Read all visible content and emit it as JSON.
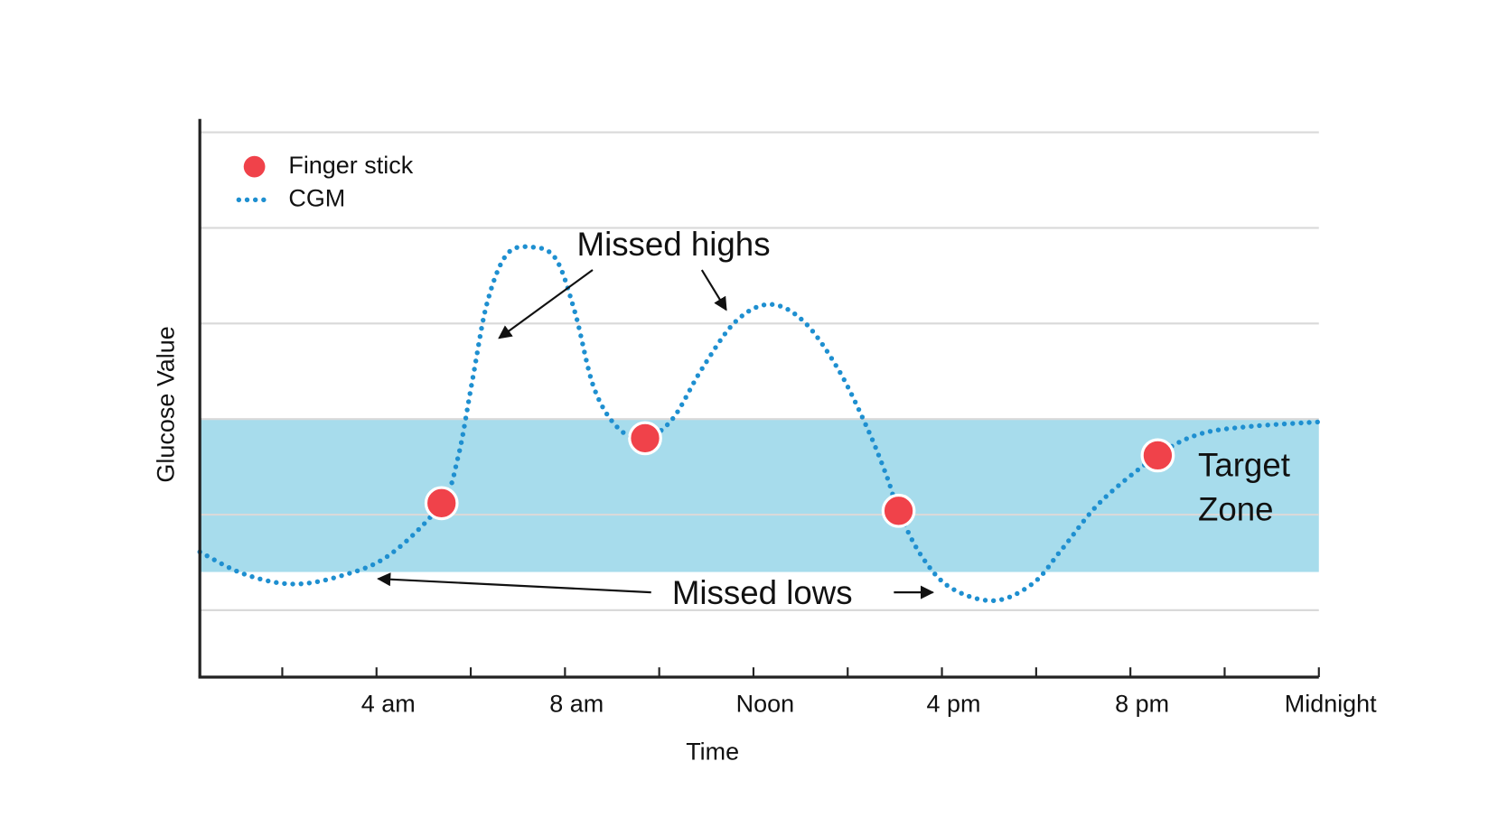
{
  "chart_data": {
    "type": "line",
    "xlabel": "Time",
    "ylabel": "Glucose Value",
    "xlim": [
      0.25,
      24
    ],
    "ylim": [
      15,
      307
    ],
    "xticks": [
      {
        "value": 4,
        "label": "4 am"
      },
      {
        "value": 8,
        "label": "8 am"
      },
      {
        "value": 12,
        "label": "Noon"
      },
      {
        "value": 16,
        "label": "4 pm"
      },
      {
        "value": 20,
        "label": "8 pm"
      },
      {
        "value": 24,
        "label": "Midnight"
      }
    ],
    "xminorticks": [
      2,
      6,
      10,
      14,
      18,
      22
    ],
    "gridlines": [
      50,
      100,
      150,
      200,
      250,
      300
    ],
    "grid": true,
    "target_zone": [
      70,
      150
    ],
    "target_zone_color": "#a7dcec",
    "target_zone_label": [
      "Target",
      "Zone"
    ],
    "annotations": [
      "Missed highs",
      "Missed lows"
    ],
    "legend": "upper left",
    "series": [
      {
        "name": "Finger stick",
        "style": "markers",
        "color": "#f0424a",
        "x": [
          5.38,
          9.7,
          15.08,
          20.58
        ],
        "values": [
          106,
          140,
          102,
          131
        ]
      },
      {
        "name": "CGM",
        "style": "dotted",
        "color": "#1e8fd0",
        "x": [
          0.25,
          1.18,
          2.21,
          3.25,
          4.28,
          5.38,
          5.73,
          6.04,
          6.35,
          6.76,
          7.28,
          7.8,
          8.21,
          8.62,
          9.14,
          9.7,
          10.28,
          10.9,
          11.62,
          12.35,
          13.07,
          13.8,
          14.42,
          14.83,
          15.08,
          15.55,
          16.17,
          17.1,
          17.93,
          18.55,
          19.38,
          20.58,
          21.45,
          22.48,
          24
        ],
        "values": [
          80.5,
          69,
          63.7,
          68,
          79,
          106,
          130,
          171,
          211,
          236,
          240,
          234,
          206,
          166,
          145,
          140,
          150,
          176,
          201,
          210,
          201,
          176,
          145,
          120,
          102,
          79,
          62,
          55,
          64,
          82,
          107,
          131,
          142,
          146,
          148.5
        ]
      }
    ]
  }
}
